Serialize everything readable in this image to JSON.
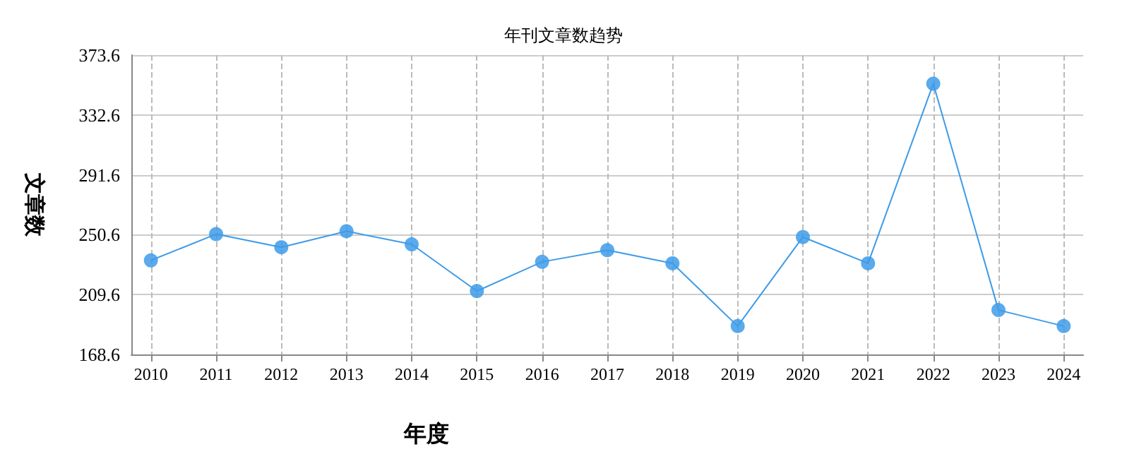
{
  "chart_data": {
    "type": "line",
    "title": "年刊文章数趋势",
    "xlabel": "年度",
    "ylabel": "文章数",
    "x": [
      2010,
      2011,
      2012,
      2013,
      2014,
      2015,
      2016,
      2017,
      2018,
      2019,
      2020,
      2021,
      2022,
      2023,
      2024
    ],
    "series": [
      {
        "color": "#3d9be9",
        "values": [
          233,
          251,
          242,
          253,
          244,
          212,
          232,
          240,
          231,
          188,
          249,
          231,
          354,
          199,
          188
        ]
      }
    ],
    "xlim": [
      2009.7,
      2024.3
    ],
    "xticks": [
      2010,
      2011,
      2012,
      2013,
      2014,
      2015,
      2016,
      2017,
      2018,
      2019,
      2020,
      2021,
      2022,
      2023,
      2024
    ],
    "ylim": [
      168.6,
      373.6
    ],
    "yticks": [
      168.6,
      209.6,
      250.6,
      291.6,
      332.6,
      373.6
    ],
    "grid": true,
    "marker": "circle",
    "line_style": "solid"
  }
}
